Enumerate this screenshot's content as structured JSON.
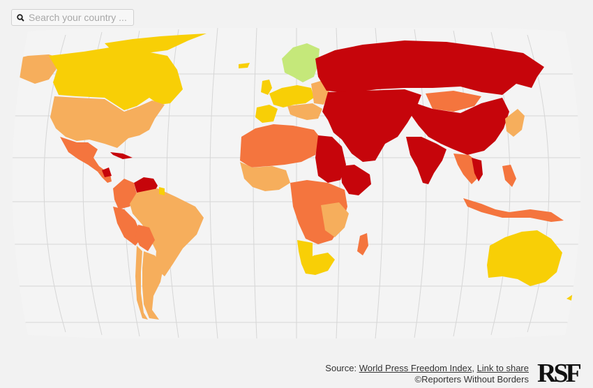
{
  "search": {
    "placeholder": "Search your country ..."
  },
  "footer": {
    "source_prefix": "Source: ",
    "index_link": "World Press Freedom Index",
    "separator": ", ",
    "share_link": "Link to share",
    "copyright": "©Reporters Without Borders"
  },
  "logo": {
    "text": "RSF"
  },
  "colors": {
    "background": "#f2f2f2",
    "ocean": "#f4f4f4",
    "graticule": "#d6d6d6",
    "good": "#c5e87a",
    "satisfactory": "#f8cf06",
    "problematic": "#f6ae5c",
    "difficult": "#f4753e",
    "very_serious": "#c6050b"
  },
  "regions": [
    {
      "name": "Alaska",
      "category": "problematic"
    },
    {
      "name": "Canada",
      "category": "satisfactory"
    },
    {
      "name": "Greenland",
      "category": "satisfactory"
    },
    {
      "name": "United States",
      "category": "problematic"
    },
    {
      "name": "Mexico",
      "category": "difficult"
    },
    {
      "name": "Cuba",
      "category": "very_serious"
    },
    {
      "name": "Nicaragua",
      "category": "very_serious"
    },
    {
      "name": "Venezuela",
      "category": "very_serious"
    },
    {
      "name": "Colombia",
      "category": "difficult"
    },
    {
      "name": "Peru",
      "category": "difficult"
    },
    {
      "name": "Brazil",
      "category": "problematic"
    },
    {
      "name": "Bolivia",
      "category": "difficult"
    },
    {
      "name": "Argentina",
      "category": "problematic"
    },
    {
      "name": "Chile",
      "category": "problematic"
    },
    {
      "name": "Scandinavia",
      "category": "good"
    },
    {
      "name": "Western Europe",
      "category": "satisfactory"
    },
    {
      "name": "Eastern Europe",
      "category": "problematic"
    },
    {
      "name": "Russia",
      "category": "very_serious"
    },
    {
      "name": "Middle East & Central Asia",
      "category": "very_serious"
    },
    {
      "name": "China",
      "category": "very_serious"
    },
    {
      "name": "Mongolia",
      "category": "difficult"
    },
    {
      "name": "India",
      "category": "very_serious"
    },
    {
      "name": "Japan",
      "category": "problematic"
    },
    {
      "name": "Southeast Asia",
      "category": "difficult"
    },
    {
      "name": "North Africa",
      "category": "difficult"
    },
    {
      "name": "Egypt & Sudan",
      "category": "very_serious"
    },
    {
      "name": "West Africa",
      "category": "problematic"
    },
    {
      "name": "Central Africa",
      "category": "difficult"
    },
    {
      "name": "Horn of Africa",
      "category": "very_serious"
    },
    {
      "name": "Namibia",
      "category": "satisfactory"
    },
    {
      "name": "South Africa",
      "category": "satisfactory"
    },
    {
      "name": "Madagascar",
      "category": "difficult"
    },
    {
      "name": "Australia",
      "category": "satisfactory"
    },
    {
      "name": "New Zealand",
      "category": "satisfactory"
    }
  ]
}
